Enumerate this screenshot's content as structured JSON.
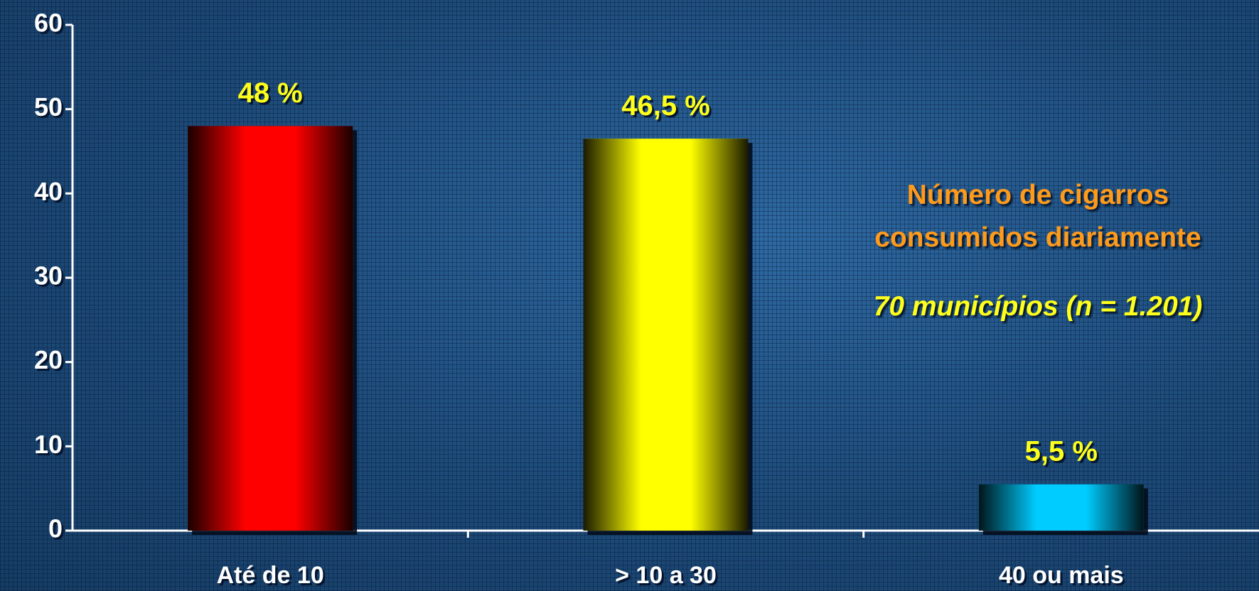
{
  "chart_data": {
    "type": "bar",
    "title": "Número de cigarros consumidos diariamente",
    "subtitle": "70 municípios  (n = 1.201)",
    "categories": [
      "Até de 10",
      "> 10 a 30",
      "40 ou mais"
    ],
    "values": [
      48,
      46.5,
      5.5
    ],
    "value_labels": [
      "48 %",
      "46,5 %",
      "5,5 %"
    ],
    "colors": [
      "#ff0000",
      "#ffff00",
      "#00ccff"
    ],
    "ylim": [
      0,
      60
    ],
    "yticks": [
      0,
      10,
      20,
      30,
      40,
      50,
      60
    ]
  }
}
